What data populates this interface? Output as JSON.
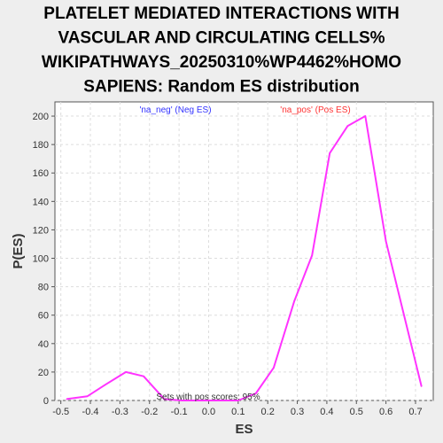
{
  "chart_data": {
    "type": "line",
    "title_lines": [
      "PLATELET MEDIATED INTERACTIONS WITH",
      "VASCULAR AND CIRCULATING CELLS%",
      "WIKIPATHWAYS_20250310%WP4462%HOMO",
      "SAPIENS: Random ES distribution"
    ],
    "xlabel": "ES",
    "ylabel": "P(ES)",
    "xlim": [
      -0.52,
      0.76
    ],
    "ylim": [
      0,
      210
    ],
    "x_ticks": [
      -0.5,
      -0.4,
      -0.3,
      -0.2,
      -0.1,
      0.0,
      0.1,
      0.2,
      0.3,
      0.4,
      0.5,
      0.6,
      0.7
    ],
    "x_tick_labels": [
      "-0.5",
      "-0.4",
      "-0.3",
      "-0.2",
      "-0.1",
      "0.0",
      "0.1",
      "0.2",
      "0.3",
      "0.4",
      "0.5",
      "0.6",
      "0.7"
    ],
    "y_ticks": [
      0,
      20,
      40,
      60,
      80,
      100,
      120,
      140,
      160,
      180,
      200
    ],
    "y_tick_labels": [
      "0",
      "20",
      "40",
      "60",
      "80",
      "100",
      "120",
      "140",
      "160",
      "180",
      "200"
    ],
    "grid": true,
    "series": [
      {
        "color": "#ff33ff",
        "x": [
          -0.48,
          -0.41,
          -0.35,
          -0.28,
          -0.22,
          -0.15,
          -0.09,
          -0.02,
          0.04,
          0.1,
          0.16,
          0.22,
          0.29,
          0.35,
          0.41,
          0.47,
          0.53,
          0.6,
          0.66,
          0.72
        ],
        "y": [
          1,
          3,
          11,
          20,
          17,
          1,
          0,
          0,
          0,
          0,
          5,
          23,
          70,
          102,
          174,
          193,
          200,
          112,
          61,
          10
        ]
      }
    ],
    "legend_neg": "'na_neg' (Neg ES)",
    "legend_pos": "'na_pos' (Pos ES)",
    "annotation": "Sets with pos scores: 95%"
  }
}
